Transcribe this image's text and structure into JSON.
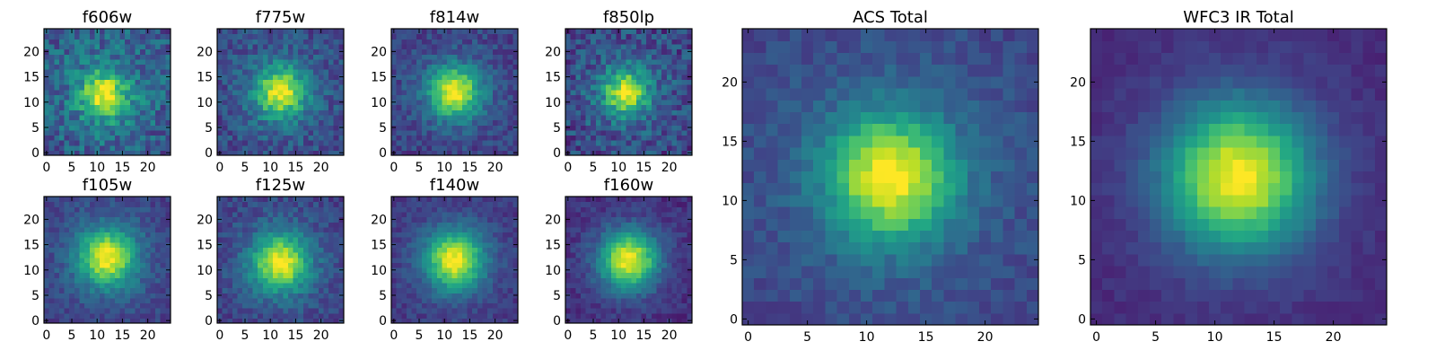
{
  "chart_data": [
    {
      "type": "heatmap",
      "title": "f606w",
      "grid_size": 25,
      "xlim": [
        0,
        24
      ],
      "ylim": [
        0,
        24
      ],
      "xticks": [
        0,
        5,
        10,
        15,
        20
      ],
      "yticks": [
        0,
        5,
        10,
        15,
        20
      ],
      "peak": [
        11.5,
        11.5
      ],
      "sigma": 3.0,
      "amplitude": 0.55,
      "background": 0.45,
      "noise": 0.32,
      "seed": 11,
      "colormap": "viridis",
      "grid": false
    },
    {
      "type": "heatmap",
      "title": "f775w",
      "grid_size": 25,
      "xlim": [
        0,
        24
      ],
      "ylim": [
        0,
        24
      ],
      "xticks": [
        0,
        5,
        10,
        15,
        20
      ],
      "yticks": [
        0,
        5,
        10,
        15,
        20
      ],
      "peak": [
        12,
        12
      ],
      "sigma": 3.3,
      "amplitude": 0.65,
      "background": 0.35,
      "noise": 0.24,
      "seed": 23,
      "colormap": "viridis",
      "grid": false
    },
    {
      "type": "heatmap",
      "title": "f814w",
      "grid_size": 25,
      "xlim": [
        0,
        24
      ],
      "ylim": [
        0,
        24
      ],
      "xticks": [
        0,
        5,
        10,
        15,
        20
      ],
      "yticks": [
        0,
        5,
        10,
        15,
        20
      ],
      "peak": [
        12,
        12
      ],
      "sigma": 3.4,
      "amplitude": 0.7,
      "background": 0.3,
      "noise": 0.2,
      "seed": 37,
      "colormap": "viridis",
      "grid": false
    },
    {
      "type": "heatmap",
      "title": "f850lp",
      "grid_size": 25,
      "xlim": [
        0,
        24
      ],
      "ylim": [
        0,
        24
      ],
      "xticks": [
        0,
        5,
        10,
        15,
        20
      ],
      "yticks": [
        0,
        5,
        10,
        15,
        20
      ],
      "peak": [
        11.5,
        12
      ],
      "sigma": 2.9,
      "amplitude": 0.65,
      "background": 0.35,
      "noise": 0.3,
      "seed": 41,
      "colormap": "viridis",
      "grid": false
    },
    {
      "type": "heatmap",
      "title": "f105w",
      "grid_size": 25,
      "xlim": [
        0,
        24
      ],
      "ylim": [
        0,
        24
      ],
      "xticks": [
        0,
        5,
        10,
        15,
        20
      ],
      "yticks": [
        0,
        5,
        10,
        15,
        20
      ],
      "peak": [
        12,
        12.5
      ],
      "sigma": 3.8,
      "amplitude": 0.7,
      "background": 0.3,
      "noise": 0.16,
      "seed": 53,
      "colormap": "viridis",
      "grid": false
    },
    {
      "type": "heatmap",
      "title": "f125w",
      "grid_size": 25,
      "xlim": [
        0,
        24
      ],
      "ylim": [
        0,
        24
      ],
      "xticks": [
        0,
        5,
        10,
        15,
        20
      ],
      "yticks": [
        0,
        5,
        10,
        15,
        20
      ],
      "peak": [
        12,
        11.5
      ],
      "sigma": 3.8,
      "amplitude": 0.7,
      "background": 0.3,
      "noise": 0.18,
      "seed": 67,
      "colormap": "viridis",
      "grid": false
    },
    {
      "type": "heatmap",
      "title": "f140w",
      "grid_size": 25,
      "xlim": [
        0,
        24
      ],
      "ylim": [
        0,
        24
      ],
      "xticks": [
        0,
        5,
        10,
        15,
        20
      ],
      "yticks": [
        0,
        5,
        10,
        15,
        20
      ],
      "peak": [
        12,
        12
      ],
      "sigma": 3.9,
      "amplitude": 0.75,
      "background": 0.25,
      "noise": 0.14,
      "seed": 71,
      "colormap": "viridis",
      "grid": false
    },
    {
      "type": "heatmap",
      "title": "f160w",
      "grid_size": 25,
      "xlim": [
        0,
        24
      ],
      "ylim": [
        0,
        24
      ],
      "xticks": [
        0,
        5,
        10,
        15,
        20
      ],
      "yticks": [
        0,
        5,
        10,
        15,
        20
      ],
      "peak": [
        12,
        12
      ],
      "sigma": 3.9,
      "amplitude": 0.8,
      "background": 0.2,
      "noise": 0.14,
      "seed": 83,
      "colormap": "viridis",
      "grid": false
    },
    {
      "type": "heatmap",
      "title": "ACS Total",
      "grid_size": 25,
      "xlim": [
        0,
        24
      ],
      "ylim": [
        0,
        24
      ],
      "xticks": [
        0,
        5,
        10,
        15,
        20
      ],
      "yticks": [
        0,
        5,
        10,
        15,
        20
      ],
      "peak": [
        12,
        12
      ],
      "sigma": 3.5,
      "amplitude": 0.7,
      "background": 0.33,
      "noise": 0.13,
      "seed": 97,
      "colormap": "viridis",
      "grid": false
    },
    {
      "type": "heatmap",
      "title": "WFC3 IR Total",
      "grid_size": 25,
      "xlim": [
        0,
        24
      ],
      "ylim": [
        0,
        24
      ],
      "xticks": [
        0,
        5,
        10,
        15,
        20
      ],
      "yticks": [
        0,
        5,
        10,
        15,
        20
      ],
      "peak": [
        12,
        12
      ],
      "sigma": 4.2,
      "amplitude": 0.82,
      "background": 0.18,
      "noise": 0.07,
      "seed": 101,
      "colormap": "viridis",
      "grid": false
    }
  ]
}
